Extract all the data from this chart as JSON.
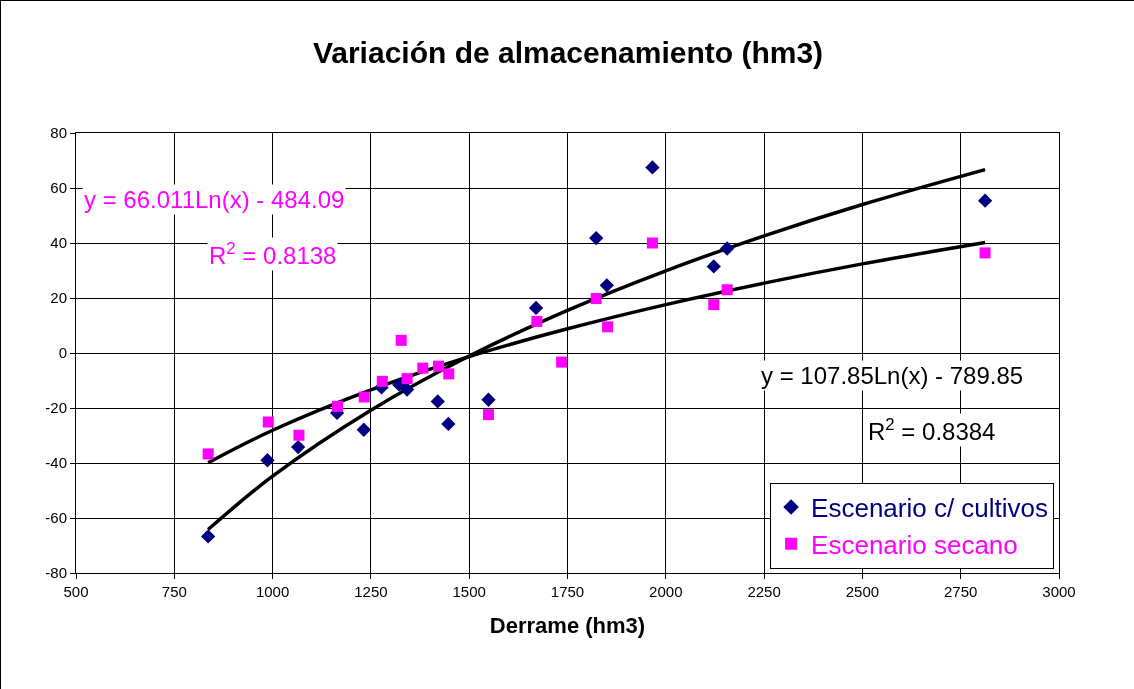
{
  "chart_data": {
    "type": "scatter",
    "title": "Variación de almacenamiento (hm3)",
    "xlabel": "Derrame (hm3)",
    "xlim": [
      500,
      3000
    ],
    "xticks": [
      500,
      750,
      1000,
      1250,
      1500,
      1750,
      2000,
      2250,
      2500,
      2750,
      3000
    ],
    "ylim": [
      -80,
      80
    ],
    "yticks": [
      -80,
      -60,
      -40,
      -20,
      0,
      20,
      40,
      60,
      80
    ],
    "grid": true,
    "legend": "bottom right",
    "series": [
      {
        "name": "Escenario c/ cultivos",
        "color": "#000080",
        "marker": "diamond",
        "x": [
          836,
          987,
          1065,
          1164,
          1232,
          1277,
          1322,
          1342,
          1377,
          1420,
          1447,
          1549,
          1670,
          1823,
          1850,
          1966,
          2122,
          2156,
          2812
        ],
        "values": [
          -66.7,
          -39,
          -34.2,
          -21.8,
          -27.9,
          -12.5,
          -11.5,
          -13.3,
          null,
          -17.6,
          -25.8,
          -17,
          16.4,
          41.8,
          24.6,
          67.5,
          31.5,
          38,
          55.4
        ]
      },
      {
        "name": "Escenario secano",
        "color": "#ff00ff",
        "marker": "square",
        "x": [
          836,
          989,
          1067,
          1165,
          1233,
          1279,
          1327,
          1342,
          1382,
          1422,
          1448,
          1549,
          1672,
          1735,
          1823,
          1852,
          1966,
          2122,
          2156,
          2812
        ],
        "values": [
          -36.7,
          -25.1,
          -29.9,
          -19.4,
          -16,
          -10.3,
          4.6,
          -9.3,
          -5.5,
          -4.8,
          -7.6,
          -22.4,
          11.5,
          -3.3,
          19.8,
          9.5,
          40,
          17.6,
          23,
          36.4
        ]
      },
      {
        "type": "line",
        "color": "#000000",
        "marker": "none",
        "x": [
          836,
          1000,
          1250,
          1500,
          1750,
          2000,
          2250,
          2500,
          2812
        ],
        "values": [
          -64.2,
          -44.8,
          -20.8,
          -1.1,
          15.5,
          29.9,
          42.6,
          54,
          66.7
        ]
      },
      {
        "type": "line",
        "color": "#000000",
        "marker": "none",
        "x": [
          836,
          1000,
          1250,
          1500,
          1750,
          2000,
          2250,
          2500,
          2812
        ],
        "values": [
          -39.9,
          -28.1,
          -13.4,
          -1.3,
          8.8,
          17.6,
          25.4,
          32.4,
          40.2
        ]
      }
    ],
    "annotations": [
      "y = 66.011Ln(x) - 484.09",
      "R$^{2}$ = 0.8138",
      "y = 107.85Ln(x) - 789.85",
      "R$^{2}$ = 0.8384"
    ]
  }
}
